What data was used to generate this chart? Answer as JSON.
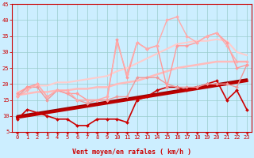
{
  "xlabel": "Vent moyen/en rafales ( km/h )",
  "xlim": [
    -0.5,
    23.5
  ],
  "ylim": [
    5,
    45
  ],
  "yticks": [
    5,
    10,
    15,
    20,
    25,
    30,
    35,
    40,
    45
  ],
  "xticks": [
    0,
    1,
    2,
    3,
    4,
    5,
    6,
    7,
    8,
    9,
    10,
    11,
    12,
    13,
    14,
    15,
    16,
    17,
    18,
    19,
    20,
    21,
    22,
    23
  ],
  "background_color": "#cceeff",
  "grid_color": "#99cccc",
  "series": [
    {
      "x": [
        0,
        1,
        2,
        3,
        4,
        5,
        6,
        7,
        8,
        9,
        10,
        11,
        12,
        13,
        14,
        15,
        16,
        17,
        18,
        19,
        20,
        21,
        22,
        23
      ],
      "y": [
        9,
        12,
        11,
        10,
        9,
        9,
        7,
        7,
        9,
        9,
        9,
        8,
        15,
        16,
        18,
        19,
        19,
        18,
        19,
        20,
        21,
        15,
        18,
        12
      ],
      "color": "#cc0000",
      "lw": 1.2,
      "marker": "D",
      "ms": 2.0,
      "zorder": 5
    },
    {
      "x": [
        0,
        1,
        2,
        3,
        4,
        5,
        6,
        7,
        8,
        9,
        10,
        11,
        12,
        13,
        14,
        15,
        16,
        17,
        18,
        19,
        20,
        21,
        22,
        23
      ],
      "y": [
        9.5,
        10.0,
        10.5,
        11.0,
        11.5,
        12.0,
        12.5,
        13.0,
        13.5,
        14.0,
        14.5,
        15.0,
        15.5,
        16.0,
        16.5,
        17.0,
        17.5,
        18.0,
        18.5,
        19.0,
        19.5,
        20.0,
        20.5,
        21.0
      ],
      "color": "#bb0000",
      "lw": 2.5,
      "marker": null,
      "ms": 0,
      "zorder": 4
    },
    {
      "x": [
        0,
        1,
        2,
        3,
        4,
        5,
        6,
        7,
        8,
        9,
        10,
        11,
        12,
        13,
        14,
        15,
        16,
        17,
        18,
        19,
        20,
        21,
        22,
        23
      ],
      "y": [
        10,
        10.5,
        11,
        11.5,
        12,
        12.5,
        13,
        13.5,
        14,
        14.5,
        15,
        15.5,
        16,
        16.5,
        17,
        17.5,
        18,
        18.5,
        19,
        19.5,
        20,
        20.5,
        21,
        21.5
      ],
      "color": "#990000",
      "lw": 1.5,
      "marker": null,
      "ms": 0,
      "zorder": 3
    },
    {
      "x": [
        0,
        1,
        2,
        3,
        4,
        5,
        6,
        7,
        8,
        9,
        10,
        11,
        12,
        13,
        14,
        15,
        16,
        17,
        18,
        19,
        20,
        21,
        22,
        23
      ],
      "y": [
        16,
        19,
        19,
        15,
        18,
        17,
        15,
        14,
        15,
        15,
        16,
        16,
        22,
        22,
        22,
        20,
        19,
        19,
        19,
        20,
        20,
        20,
        19,
        26
      ],
      "color": "#ee9999",
      "lw": 1.0,
      "marker": "D",
      "ms": 2.0,
      "zorder": 5
    },
    {
      "x": [
        0,
        1,
        2,
        3,
        4,
        5,
        6,
        7,
        8,
        9,
        10,
        11,
        12,
        13,
        14,
        15,
        16,
        17,
        18,
        19,
        20,
        21,
        22,
        23
      ],
      "y": [
        16.5,
        17.0,
        17.5,
        17.5,
        18.0,
        18.0,
        18.5,
        18.5,
        19.0,
        19.0,
        20.0,
        20.5,
        21.0,
        22.0,
        23.0,
        24.0,
        25.0,
        25.5,
        26.0,
        26.5,
        27.0,
        27.0,
        27.0,
        27.0
      ],
      "color": "#ffbbbb",
      "lw": 1.8,
      "marker": null,
      "ms": 0,
      "zorder": 2
    },
    {
      "x": [
        0,
        1,
        2,
        3,
        4,
        5,
        6,
        7,
        8,
        9,
        10,
        11,
        12,
        13,
        14,
        15,
        16,
        17,
        18,
        19,
        20,
        21,
        22,
        23
      ],
      "y": [
        17.5,
        18.5,
        19.5,
        19.5,
        20.5,
        20.5,
        21.0,
        21.5,
        22.0,
        22.5,
        24.0,
        25.0,
        26.5,
        28.0,
        29.5,
        31.0,
        32.5,
        33.0,
        33.5,
        33.5,
        34.0,
        33.5,
        30.0,
        29.0
      ],
      "color": "#ffcccc",
      "lw": 1.5,
      "marker": null,
      "ms": 0,
      "zorder": 2
    },
    {
      "x": [
        0,
        1,
        2,
        3,
        4,
        5,
        6,
        7,
        8,
        9,
        10,
        11,
        12,
        13,
        14,
        15,
        16,
        17,
        18,
        19,
        20,
        21,
        22,
        23
      ],
      "y": [
        17,
        19,
        20,
        16,
        18,
        17,
        17,
        15,
        15,
        15,
        34,
        22,
        33,
        31,
        32,
        19,
        32,
        32,
        33,
        35,
        36,
        33,
        25,
        26
      ],
      "color": "#ff9999",
      "lw": 1.0,
      "marker": "D",
      "ms": 2.0,
      "zorder": 5
    },
    {
      "x": [
        0,
        1,
        2,
        3,
        4,
        5,
        6,
        7,
        8,
        9,
        10,
        11,
        12,
        13,
        14,
        15,
        16,
        17,
        18,
        19,
        20,
        21,
        22,
        23
      ],
      "y": [
        16,
        18,
        20,
        16,
        18,
        18,
        15,
        15,
        15,
        16,
        33,
        23,
        33,
        31,
        32,
        40,
        41,
        35,
        33,
        35,
        36,
        32,
        27,
        27
      ],
      "color": "#ffaaaa",
      "lw": 1.0,
      "marker": "D",
      "ms": 2.0,
      "zorder": 5
    }
  ],
  "wind_directions": [
    225,
    225,
    225,
    200,
    215,
    220,
    225,
    200,
    225,
    220,
    220,
    225,
    210,
    225,
    200,
    200,
    200,
    210,
    220,
    225,
    225,
    215,
    225,
    215
  ]
}
